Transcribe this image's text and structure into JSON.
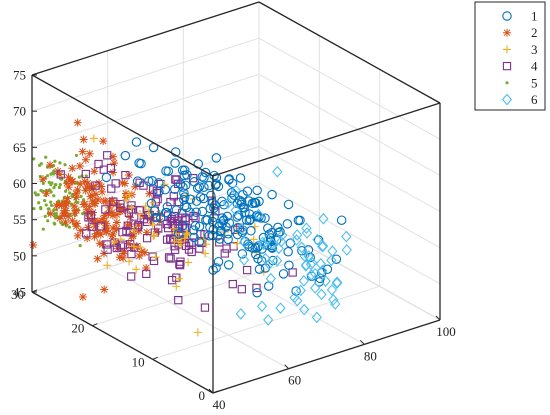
{
  "chart_data": {
    "type": "scatter",
    "projection": "3d-box",
    "grid": true,
    "legend_placement": "top-right, outside plot",
    "axes": {
      "x": {
        "range": [
          0,
          30
        ],
        "ticks": [
          0,
          10,
          20,
          30
        ],
        "tick_labels": [
          "0",
          "10",
          "20",
          "30"
        ]
      },
      "y": {
        "range": [
          40,
          100
        ],
        "ticks": [
          40,
          60,
          80,
          100
        ],
        "tick_labels": [
          "40",
          "60",
          "80",
          "100"
        ]
      },
      "z": {
        "range": [
          45,
          75
        ],
        "ticks": [
          45,
          50,
          55,
          60,
          65,
          70,
          75
        ],
        "tick_labels": [
          "45",
          "50",
          "55",
          "60",
          "65",
          "70",
          "75"
        ]
      }
    },
    "series": [
      {
        "name": "1",
        "marker": "circle",
        "color": "#0072BD",
        "count": 190,
        "x_center": 13,
        "y_center": 66,
        "z_center": 58.5,
        "x_spread": 7,
        "y_spread": 5,
        "z_spread": 2.6
      },
      {
        "name": "2",
        "marker": "asterisk",
        "color": "#D95319",
        "count": 160,
        "x_center": 24,
        "y_center": 48,
        "z_center": 57.5,
        "x_spread": 4,
        "y_spread": 4,
        "z_spread": 3.2
      },
      {
        "name": "3",
        "marker": "plus",
        "color": "#EDB120",
        "count": 50,
        "x_center": 18,
        "y_center": 57,
        "z_center": 56,
        "x_spread": 7,
        "y_spread": 7,
        "z_spread": 4
      },
      {
        "name": "4",
        "marker": "square",
        "color": "#7E2F8E",
        "count": 130,
        "x_center": 17,
        "y_center": 56,
        "z_center": 57,
        "x_spread": 6,
        "y_spread": 5,
        "z_spread": 2.6
      },
      {
        "name": "5",
        "marker": "point",
        "color": "#77AC30",
        "count": 110,
        "x_center": 27,
        "y_center": 42,
        "z_center": 59.5,
        "x_spread": 2.2,
        "y_spread": 2,
        "z_spread": 2.6
      },
      {
        "name": "6",
        "marker": "diamond",
        "color": "#4DBEEE",
        "count": 60,
        "x_center": 7,
        "y_center": 73,
        "z_center": 54,
        "x_spread": 6,
        "y_spread": 6,
        "z_spread": 3.2
      }
    ]
  }
}
